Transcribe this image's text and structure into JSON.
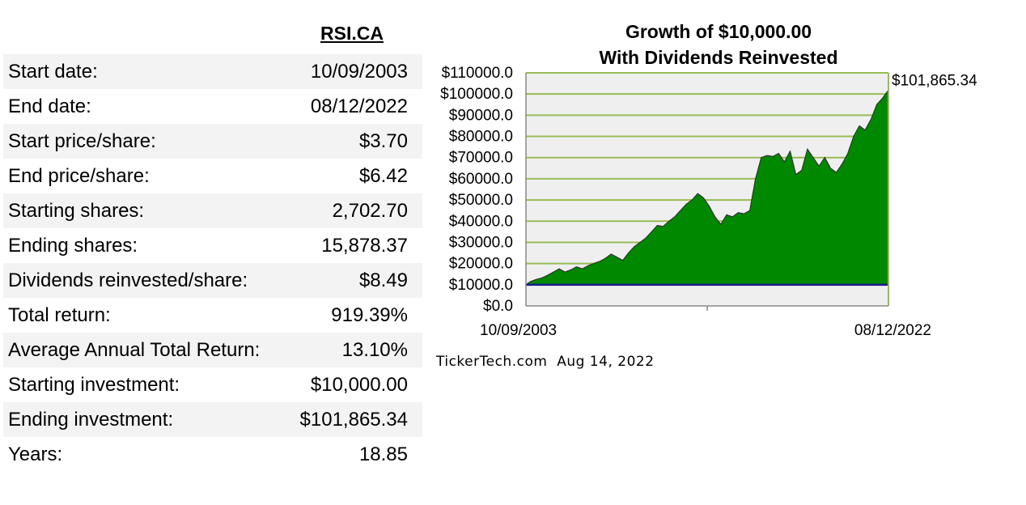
{
  "ticker": "RSI.CA",
  "stats": [
    {
      "label": "Start date:",
      "value": "10/09/2003"
    },
    {
      "label": "End date:",
      "value": "08/12/2022"
    },
    {
      "label": "Start price/share:",
      "value": "$3.70"
    },
    {
      "label": "End price/share:",
      "value": "$6.42"
    },
    {
      "label": "Starting shares:",
      "value": "2,702.70"
    },
    {
      "label": "Ending shares:",
      "value": "15,878.37"
    },
    {
      "label": "Dividends reinvested/share:",
      "value": "$8.49"
    },
    {
      "label": "Total return:",
      "value": "919.39%"
    },
    {
      "label": "Average Annual Total Return:",
      "value": "13.10%"
    },
    {
      "label": "Starting investment:",
      "value": "$10,000.00"
    },
    {
      "label": "Ending investment:",
      "value": "$101,865.34"
    },
    {
      "label": "Years:",
      "value": "18.85"
    }
  ],
  "chart_data": {
    "type": "area",
    "title": "Growth of $10,000.00",
    "subtitle": "With Dividends Reinvested",
    "ylim": [
      0,
      110000
    ],
    "y_ticks": [
      "$0.0",
      "$10000.0",
      "$20000.0",
      "$30000.0",
      "$40000.0",
      "$50000.0",
      "$60000.0",
      "$70000.0",
      "$80000.0",
      "$90000.0",
      "$100000.0",
      "$110000.0"
    ],
    "x_ticks": [
      "10/09/2003",
      "08/12/2022"
    ],
    "x_range": [
      2003.77,
      2022.61
    ],
    "baseline": 10000,
    "end_label": "$101,865.34",
    "grid": "horizontal",
    "series": [
      {
        "color": "#008800",
        "x": [
          2003.77,
          2004.0,
          2004.3,
          2004.6,
          2004.9,
          2005.2,
          2005.5,
          2005.8,
          2006.1,
          2006.4,
          2006.7,
          2007.0,
          2007.3,
          2007.6,
          2007.9,
          2008.2,
          2008.5,
          2008.8,
          2009.1,
          2009.4,
          2009.7,
          2010.0,
          2010.3,
          2010.6,
          2010.9,
          2011.2,
          2011.5,
          2011.8,
          2012.1,
          2012.4,
          2012.7,
          2013.0,
          2013.3,
          2013.6,
          2013.9,
          2014.2,
          2014.5,
          2014.8,
          2015.1,
          2015.4,
          2015.7,
          2016.0,
          2016.3,
          2016.6,
          2016.9,
          2017.2,
          2017.5,
          2017.8,
          2018.1,
          2018.4,
          2018.7,
          2019.0,
          2019.3,
          2019.6,
          2019.9,
          2020.2,
          2020.5,
          2020.8,
          2021.1,
          2021.4,
          2021.7,
          2022.0,
          2022.3,
          2022.61
        ],
        "values": [
          10000,
          11500,
          12500,
          13200,
          14500,
          16000,
          17500,
          16000,
          17000,
          18500,
          17500,
          19000,
          20000,
          21000,
          22500,
          24500,
          23000,
          21500,
          25000,
          28000,
          30000,
          32000,
          35000,
          38000,
          37500,
          40000,
          42000,
          45000,
          48000,
          50000,
          53000,
          51000,
          47000,
          42000,
          38500,
          43000,
          42000,
          44000,
          43500,
          45000,
          60000,
          70000,
          71000,
          70500,
          72000,
          68000,
          73000,
          62000,
          64000,
          74000,
          70000,
          66000,
          70000,
          65000,
          63000,
          67000,
          72000,
          80000,
          85000,
          83000,
          88000,
          95000,
          98000,
          101865
        ]
      }
    ]
  },
  "credit": "TickerTech.com  Aug 14, 2022"
}
